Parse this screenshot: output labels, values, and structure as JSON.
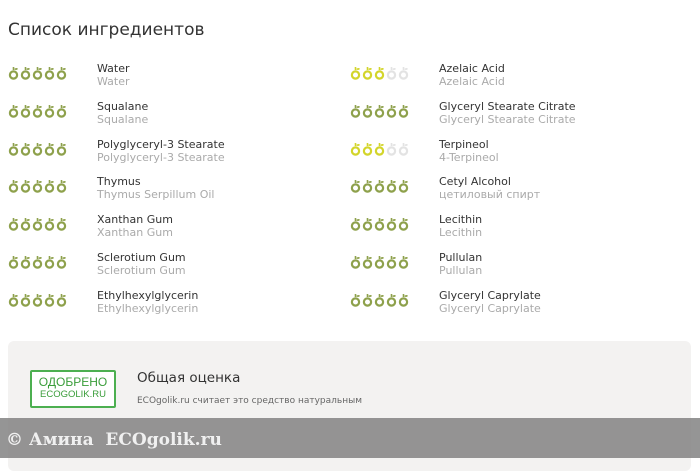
{
  "title": "Список ингредиентов",
  "colors": {
    "green": "#8ea14c",
    "yellow": "#d3d52b",
    "empty": "#e3e3e3"
  },
  "left": [
    {
      "name": "Water",
      "sub": "Water",
      "rating": 5,
      "color": "green"
    },
    {
      "name": "Squalane",
      "sub": "Squalane",
      "rating": 5,
      "color": "green"
    },
    {
      "name": "Polyglyceryl-3 Stearate",
      "sub": "Polyglyceryl-3 Stearate",
      "rating": 5,
      "color": "green"
    },
    {
      "name": "Thymus",
      "sub": "Thymus Serpillum Oil",
      "rating": 5,
      "color": "green"
    },
    {
      "name": "Xanthan Gum",
      "sub": "Xanthan Gum",
      "rating": 5,
      "color": "green"
    },
    {
      "name": "Sclerotium Gum",
      "sub": "Sclerotium Gum",
      "rating": 5,
      "color": "green"
    },
    {
      "name": "Ethylhexylglycerin",
      "sub": "Ethylhexylglycerin",
      "rating": 5,
      "color": "green"
    }
  ],
  "right": [
    {
      "name": "Azelaic Acid",
      "sub": "Azelaic Acid",
      "rating": 3,
      "color": "yellow"
    },
    {
      "name": "Glyceryl Stearate Citrate",
      "sub": "Glyceryl Stearate Citrate",
      "rating": 5,
      "color": "green"
    },
    {
      "name": "Terpineol",
      "sub": "4-Terpineol",
      "rating": 3,
      "color": "yellow"
    },
    {
      "name": "Cetyl Alcohol",
      "sub": "цетиловый спирт",
      "rating": 5,
      "color": "green"
    },
    {
      "name": "Lecithin",
      "sub": "Lecithin",
      "rating": 5,
      "color": "green"
    },
    {
      "name": "Pullulan",
      "sub": "Pullulan",
      "rating": 5,
      "color": "green"
    },
    {
      "name": "Glyceryl Caprylate",
      "sub": "Glyceryl Caprylate",
      "rating": 5,
      "color": "green"
    }
  ],
  "panel": {
    "badge_line1": "ОДОБРЕНО",
    "badge_line2": "ECOGOLIK.RU",
    "title": "Общая оценка",
    "desc": "ECOgolik.ru считает это средство натуральным"
  },
  "watermark": "© Амина  ECOgolik.ru"
}
